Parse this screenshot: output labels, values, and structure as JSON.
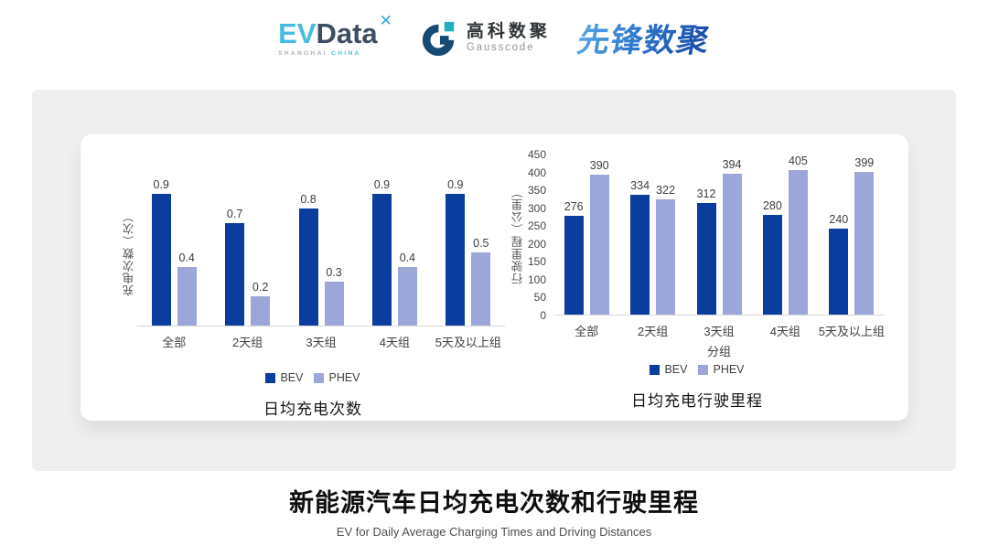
{
  "header": {
    "evdata": {
      "ev": "EV",
      "data": "Data",
      "mark": "✕",
      "sub1": "SHANGHAI",
      "sub2": "CHINA"
    },
    "gausscode": {
      "cn": "高科数聚",
      "en": "Gausscode"
    },
    "pioneer": {
      "text": "先锋数聚"
    }
  },
  "chart_data": [
    {
      "type": "bar",
      "title": "日均充电次数",
      "ylabel": "充电次数（次）",
      "xlabel": "",
      "categories": [
        "全部",
        "2天组",
        "3天组",
        "4天组",
        "5天及以上组"
      ],
      "series": [
        {
          "name": "BEV",
          "color": "#0B3D9E",
          "values": [
            0.9,
            0.7,
            0.8,
            0.9,
            0.9
          ]
        },
        {
          "name": "PHEV",
          "color": "#9CA6D8",
          "values": [
            0.4,
            0.2,
            0.3,
            0.4,
            0.5
          ]
        }
      ],
      "ylim": [
        0,
        1.0
      ],
      "yticks": [],
      "grid": false,
      "legend_position": "bottom"
    },
    {
      "type": "bar",
      "title": "日均充电行驶里程",
      "ylabel": "行驶里程（公里）",
      "xlabel": "分组",
      "categories": [
        "全部",
        "2天组",
        "3天组",
        "4天组",
        "5天及以上组"
      ],
      "series": [
        {
          "name": "BEV",
          "color": "#0B3D9E",
          "values": [
            276,
            334,
            312,
            280,
            240
          ]
        },
        {
          "name": "PHEV",
          "color": "#9CA6D8",
          "values": [
            390,
            322,
            394,
            405,
            399
          ]
        }
      ],
      "ylim": [
        0,
        450
      ],
      "yticks": [
        0,
        50,
        100,
        150,
        200,
        250,
        300,
        350,
        400,
        450
      ],
      "grid": false,
      "legend_position": "bottom"
    }
  ],
  "footer": {
    "title": "新能源汽车日均充电次数和行驶里程",
    "subtitle": "EV for Daily Average Charging Times and Driving Distances"
  }
}
